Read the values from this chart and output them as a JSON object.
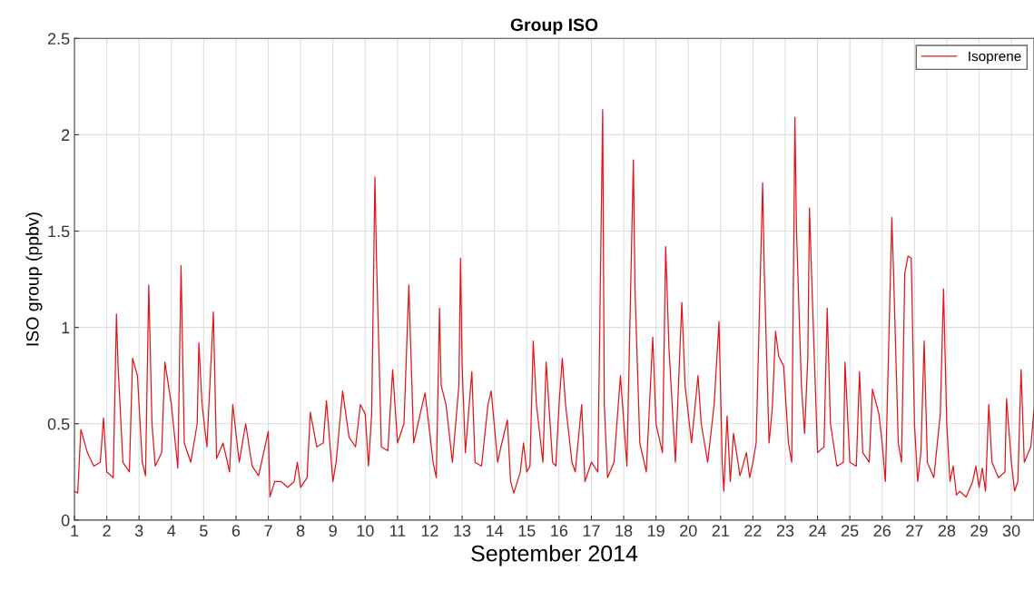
{
  "chart_data": {
    "type": "line",
    "title": "Group ISO",
    "xlabel": "September 2014",
    "ylabel": "ISO group (ppbv)",
    "xlim": [
      1,
      30.7
    ],
    "xticks": [
      1,
      2,
      3,
      4,
      5,
      6,
      7,
      8,
      9,
      10,
      11,
      12,
      13,
      14,
      15,
      16,
      17,
      18,
      19,
      20,
      21,
      22,
      23,
      24,
      25,
      26,
      27,
      28,
      29,
      30
    ],
    "ylim": [
      0,
      2.5
    ],
    "yticks": [
      0,
      0.5,
      1,
      1.5,
      2,
      2.5
    ],
    "grid": true,
    "legend": "top right",
    "marker": "none",
    "line_style": "solid",
    "series": [
      {
        "name": "Isoprene",
        "color": "#e0161d",
        "x": [
          1.0,
          1.1,
          1.2,
          1.4,
          1.6,
          1.8,
          1.9,
          2.0,
          2.2,
          2.3,
          2.35,
          2.5,
          2.7,
          2.8,
          2.95,
          3.1,
          3.2,
          3.3,
          3.4,
          3.5,
          3.7,
          3.8,
          4.0,
          4.2,
          4.3,
          4.4,
          4.6,
          4.8,
          4.85,
          4.95,
          5.1,
          5.3,
          5.4,
          5.6,
          5.8,
          5.9,
          6.1,
          6.3,
          6.5,
          6.7,
          7.0,
          7.05,
          7.2,
          7.4,
          7.6,
          7.8,
          7.9,
          8.0,
          8.2,
          8.3,
          8.5,
          8.7,
          8.8,
          9.0,
          9.1,
          9.3,
          9.5,
          9.7,
          9.85,
          10.0,
          10.1,
          10.2,
          10.3,
          10.35,
          10.5,
          10.7,
          10.85,
          11.0,
          11.2,
          11.35,
          11.5,
          11.7,
          11.85,
          12.0,
          12.1,
          12.2,
          12.3,
          12.35,
          12.5,
          12.7,
          12.9,
          12.95,
          13.0,
          13.1,
          13.3,
          13.4,
          13.6,
          13.8,
          13.9,
          14.1,
          14.2,
          14.4,
          14.5,
          14.6,
          14.8,
          14.9,
          15.0,
          15.1,
          15.2,
          15.3,
          15.5,
          15.6,
          15.8,
          15.9,
          16.0,
          16.1,
          16.2,
          16.4,
          16.5,
          16.7,
          16.8,
          17.0,
          17.2,
          17.35,
          17.4,
          17.5,
          17.7,
          17.9,
          18.1,
          18.3,
          18.35,
          18.5,
          18.7,
          18.9,
          19.0,
          19.2,
          19.3,
          19.4,
          19.6,
          19.8,
          19.9,
          20.1,
          20.3,
          20.4,
          20.6,
          20.8,
          20.95,
          21.05,
          21.1,
          21.2,
          21.3,
          21.4,
          21.6,
          21.8,
          21.9,
          22.0,
          22.1,
          22.3,
          22.35,
          22.5,
          22.6,
          22.7,
          22.8,
          22.95,
          23.1,
          23.2,
          23.3,
          23.35,
          23.5,
          23.6,
          23.7,
          23.75,
          23.85,
          24.0,
          24.2,
          24.3,
          24.4,
          24.6,
          24.8,
          24.85,
          25.0,
          25.2,
          25.3,
          25.4,
          25.6,
          25.7,
          25.9,
          26.0,
          26.1,
          26.3,
          26.35,
          26.5,
          26.6,
          26.7,
          26.8,
          26.9,
          27.0,
          27.1,
          27.2,
          27.3,
          27.4,
          27.6,
          27.8,
          27.9,
          28.0,
          28.1,
          28.2,
          28.3,
          28.4,
          28.6,
          28.8,
          28.9,
          29.0,
          29.1,
          29.2,
          29.3,
          29.4,
          29.6,
          29.8,
          29.85,
          30.0,
          30.1,
          30.2,
          30.3,
          30.4,
          30.6,
          30.7
        ],
        "values": [
          0.15,
          0.14,
          0.47,
          0.35,
          0.28,
          0.3,
          0.53,
          0.25,
          0.22,
          1.07,
          0.8,
          0.3,
          0.25,
          0.84,
          0.75,
          0.3,
          0.23,
          1.22,
          0.5,
          0.28,
          0.35,
          0.82,
          0.6,
          0.27,
          1.32,
          0.4,
          0.3,
          0.5,
          0.92,
          0.6,
          0.38,
          1.08,
          0.32,
          0.4,
          0.25,
          0.6,
          0.3,
          0.5,
          0.28,
          0.23,
          0.46,
          0.12,
          0.2,
          0.2,
          0.17,
          0.2,
          0.3,
          0.17,
          0.22,
          0.56,
          0.38,
          0.4,
          0.62,
          0.2,
          0.3,
          0.67,
          0.43,
          0.38,
          0.6,
          0.55,
          0.28,
          0.55,
          1.78,
          1.35,
          0.38,
          0.36,
          0.78,
          0.4,
          0.5,
          1.22,
          0.4,
          0.55,
          0.66,
          0.45,
          0.3,
          0.22,
          1.1,
          0.7,
          0.6,
          0.3,
          0.7,
          1.36,
          0.8,
          0.35,
          0.77,
          0.3,
          0.28,
          0.6,
          0.67,
          0.3,
          0.38,
          0.52,
          0.2,
          0.14,
          0.25,
          0.4,
          0.25,
          0.28,
          0.93,
          0.6,
          0.3,
          0.82,
          0.3,
          0.28,
          0.6,
          0.84,
          0.6,
          0.3,
          0.25,
          0.6,
          0.2,
          0.3,
          0.25,
          2.13,
          0.6,
          0.22,
          0.3,
          0.75,
          0.28,
          1.87,
          1.2,
          0.4,
          0.25,
          0.95,
          0.5,
          0.35,
          1.42,
          0.9,
          0.3,
          1.13,
          0.7,
          0.4,
          0.75,
          0.5,
          0.3,
          0.6,
          1.03,
          0.3,
          0.15,
          0.54,
          0.2,
          0.45,
          0.23,
          0.35,
          0.22,
          0.3,
          0.4,
          1.75,
          1.3,
          0.4,
          0.58,
          0.98,
          0.85,
          0.8,
          0.4,
          0.3,
          2.09,
          1.5,
          0.7,
          0.45,
          0.85,
          1.62,
          1.1,
          0.35,
          0.38,
          1.1,
          0.5,
          0.28,
          0.3,
          0.82,
          0.3,
          0.28,
          0.77,
          0.35,
          0.3,
          0.68,
          0.55,
          0.4,
          0.2,
          1.57,
          1.3,
          0.4,
          0.3,
          1.28,
          1.37,
          1.36,
          0.5,
          0.2,
          0.35,
          0.93,
          0.3,
          0.22,
          0.55,
          1.2,
          0.5,
          0.2,
          0.28,
          0.13,
          0.15,
          0.12,
          0.2,
          0.28,
          0.17,
          0.27,
          0.15,
          0.6,
          0.3,
          0.22,
          0.25,
          0.63,
          0.3,
          0.15,
          0.2,
          0.78,
          0.3,
          0.38,
          0.57
        ]
      }
    ]
  }
}
